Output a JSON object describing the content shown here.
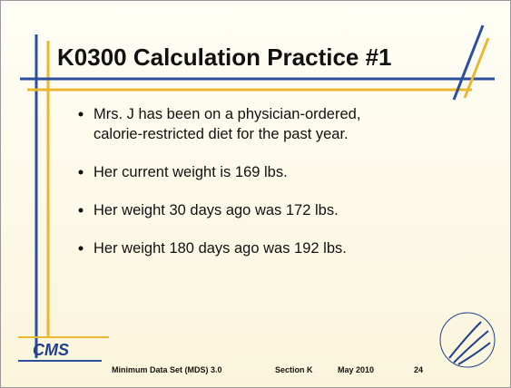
{
  "slide": {
    "title": "K0300 Calculation Practice #1",
    "bullets": [
      [
        "Mrs. J has been on a physician-ordered,",
        "calorie-restricted diet for the past year."
      ],
      [
        "Her current weight is 169 lbs."
      ],
      [
        "Her weight 30 days ago was 172 lbs."
      ],
      [
        "Her weight 180 days ago was 192 lbs."
      ]
    ],
    "footer": {
      "logo": "CMS",
      "program": "Minimum Data Set (MDS) 3.0",
      "section": "Section K",
      "date": "May 2010",
      "page": "24"
    }
  }
}
